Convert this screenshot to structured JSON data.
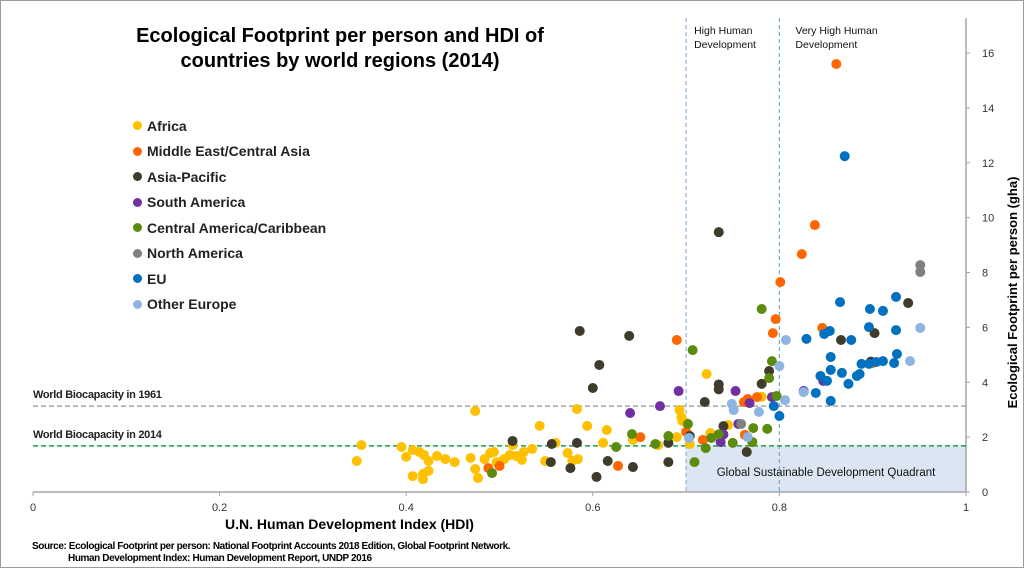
{
  "chart_data": {
    "type": "scatter",
    "title": "Ecological Footprint per person and HDI of countries by world regions (2014)",
    "xlabel": "U.N. Human Development Index (HDI)",
    "ylabel": "Ecological Footprint per person (gha)",
    "xlim": [
      0,
      1
    ],
    "ylim": [
      0,
      16
    ],
    "x_ticks": [
      "0",
      "0.2",
      "0.4",
      "0.6",
      "0.8",
      "1"
    ],
    "y_ticks": [
      "0",
      "2",
      "4",
      "6",
      "8",
      "10",
      "12",
      "14",
      "16"
    ],
    "grid": false,
    "legend_position": "top-left",
    "reference_lines": [
      {
        "label": "World Biocapacity in 1961",
        "y": 3.13,
        "color": "#a6a6a6"
      },
      {
        "label": "World Biocapacity in 2014",
        "y": 1.68,
        "color": "#1f9a4a"
      }
    ],
    "vertical_lines": [
      {
        "label": "High Human Development",
        "x": 0.7,
        "color": "#8fb4d9"
      },
      {
        "label": "Very High Human Development",
        "x": 0.8,
        "color": "#6cb0d0"
      }
    ],
    "quadrant": {
      "label": "Global Sustainable Development Quadrant",
      "x": [
        0.7,
        1
      ],
      "y": [
        0,
        1.68
      ],
      "color": "#dce6f2"
    },
    "series": [
      {
        "name": "Africa",
        "color": "#ffc000",
        "points": [
          [
            0.347,
            1.13
          ],
          [
            0.352,
            1.71
          ],
          [
            0.395,
            1.64
          ],
          [
            0.4,
            1.28
          ],
          [
            0.407,
            1.53
          ],
          [
            0.414,
            1.46
          ],
          [
            0.419,
            1.35
          ],
          [
            0.424,
            1.13
          ],
          [
            0.418,
            0.66
          ],
          [
            0.407,
            0.58
          ],
          [
            0.418,
            0.47
          ],
          [
            0.424,
            0.77
          ],
          [
            0.433,
            1.31
          ],
          [
            0.442,
            1.2
          ],
          [
            0.452,
            1.09
          ],
          [
            0.469,
            1.24
          ],
          [
            0.474,
            2.95
          ],
          [
            0.474,
            0.84
          ],
          [
            0.477,
            0.51
          ],
          [
            0.484,
            1.2
          ],
          [
            0.49,
            1.42
          ],
          [
            0.494,
            1.46
          ],
          [
            0.497,
            1.09
          ],
          [
            0.505,
            1.2
          ],
          [
            0.511,
            1.35
          ],
          [
            0.514,
            1.71
          ],
          [
            0.518,
            1.31
          ],
          [
            0.524,
            1.17
          ],
          [
            0.526,
            1.46
          ],
          [
            0.535,
            1.57
          ],
          [
            0.543,
            2.41
          ],
          [
            0.549,
            1.13
          ],
          [
            0.56,
            1.79
          ],
          [
            0.573,
            1.42
          ],
          [
            0.583,
            3.02
          ],
          [
            0.578,
            1.13
          ],
          [
            0.584,
            1.2
          ],
          [
            0.594,
            2.41
          ],
          [
            0.611,
            1.79
          ],
          [
            0.615,
            2.26
          ],
          [
            0.643,
            1.9
          ],
          [
            0.67,
            1.71
          ],
          [
            0.693,
            2.99
          ],
          [
            0.696,
            2.59
          ],
          [
            0.7,
            2.52
          ],
          [
            0.704,
            1.75
          ],
          [
            0.722,
            4.3
          ],
          [
            0.695,
            2.72
          ],
          [
            0.69,
            2.0
          ],
          [
            0.726,
            2.15
          ],
          [
            0.745,
            2.44
          ],
          [
            0.781,
            3.47
          ]
        ]
      },
      {
        "name": "Middle East/Central Asia",
        "color": "#ff6600",
        "points": [
          [
            0.861,
            15.6
          ],
          [
            0.838,
            9.73
          ],
          [
            0.824,
            8.67
          ],
          [
            0.801,
            7.65
          ],
          [
            0.796,
            6.3
          ],
          [
            0.793,
            5.79
          ],
          [
            0.846,
            5.98
          ],
          [
            0.69,
            5.54
          ],
          [
            0.762,
            3.28
          ],
          [
            0.766,
            3.39
          ],
          [
            0.776,
            3.46
          ],
          [
            0.488,
            0.87
          ],
          [
            0.5,
            0.95
          ],
          [
            0.627,
            0.95
          ],
          [
            0.651,
            2.0
          ],
          [
            0.7,
            2.19
          ],
          [
            0.763,
            2.08
          ],
          [
            0.771,
            1.82
          ],
          [
            0.718,
            1.9
          ],
          [
            0.9,
            4.7
          ]
        ]
      },
      {
        "name": "Asia-Pacific",
        "color": "#403c2c",
        "points": [
          [
            0.586,
            5.87
          ],
          [
            0.607,
            4.63
          ],
          [
            0.639,
            5.69
          ],
          [
            0.6,
            3.79
          ],
          [
            0.735,
            9.47
          ],
          [
            0.735,
            3.92
          ],
          [
            0.735,
            3.74
          ],
          [
            0.72,
            3.28
          ],
          [
            0.781,
            3.94
          ],
          [
            0.789,
            4.41
          ],
          [
            0.866,
            5.54
          ],
          [
            0.902,
            5.79
          ],
          [
            0.938,
            6.89
          ],
          [
            0.514,
            1.86
          ],
          [
            0.556,
            1.75
          ],
          [
            0.555,
            1.09
          ],
          [
            0.576,
            0.87
          ],
          [
            0.583,
            1.79
          ],
          [
            0.604,
            0.55
          ],
          [
            0.616,
            1.13
          ],
          [
            0.643,
            0.91
          ],
          [
            0.681,
            1.79
          ],
          [
            0.681,
            1.09
          ],
          [
            0.704,
            2.04
          ],
          [
            0.765,
            1.46
          ],
          [
            0.74,
            2.4
          ],
          [
            0.898,
            4.75
          ]
        ]
      },
      {
        "name": "South America",
        "color": "#7030a0",
        "points": [
          [
            0.64,
            2.88
          ],
          [
            0.672,
            3.13
          ],
          [
            0.692,
            3.68
          ],
          [
            0.753,
            3.68
          ],
          [
            0.768,
            3.24
          ],
          [
            0.756,
            2.48
          ],
          [
            0.847,
            4.05
          ],
          [
            0.826,
            3.68
          ],
          [
            0.792,
            3.46
          ],
          [
            0.737,
            1.82
          ],
          [
            0.74,
            2.1
          ]
        ]
      },
      {
        "name": "Central America/Caribbean",
        "color": "#5b8c0f",
        "points": [
          [
            0.707,
            5.17
          ],
          [
            0.781,
            6.67
          ],
          [
            0.792,
            4.77
          ],
          [
            0.789,
            4.15
          ],
          [
            0.797,
            3.5
          ],
          [
            0.702,
            2.48
          ],
          [
            0.727,
            1.97
          ],
          [
            0.75,
            1.79
          ],
          [
            0.772,
            2.33
          ],
          [
            0.787,
            2.3
          ],
          [
            0.771,
            1.82
          ],
          [
            0.721,
            1.6
          ],
          [
            0.709,
            1.09
          ],
          [
            0.681,
            2.04
          ],
          [
            0.642,
            2.11
          ],
          [
            0.625,
            1.64
          ],
          [
            0.492,
            0.69
          ],
          [
            0.667,
            1.75
          ],
          [
            0.735,
            2.1
          ]
        ]
      },
      {
        "name": "North America",
        "color": "#808080",
        "points": [
          [
            0.951,
            8.27
          ],
          [
            0.951,
            8.02
          ],
          [
            0.759,
            2.48
          ]
        ]
      },
      {
        "name": "EU",
        "color": "#0070c0",
        "points": [
          [
            0.87,
            12.24
          ],
          [
            0.865,
            6.92
          ],
          [
            0.897,
            6.67
          ],
          [
            0.911,
            6.6
          ],
          [
            0.925,
            7.11
          ],
          [
            0.896,
            6.01
          ],
          [
            0.925,
            5.9
          ],
          [
            0.854,
            5.87
          ],
          [
            0.829,
            5.58
          ],
          [
            0.848,
            5.76
          ],
          [
            0.877,
            5.54
          ],
          [
            0.855,
            4.92
          ],
          [
            0.855,
            4.45
          ],
          [
            0.867,
            4.34
          ],
          [
            0.886,
            4.3
          ],
          [
            0.888,
            4.67
          ],
          [
            0.896,
            4.67
          ],
          [
            0.904,
            4.74
          ],
          [
            0.911,
            4.77
          ],
          [
            0.926,
            5.03
          ],
          [
            0.923,
            4.7
          ],
          [
            0.883,
            4.23
          ],
          [
            0.844,
            4.23
          ],
          [
            0.851,
            4.05
          ],
          [
            0.839,
            3.61
          ],
          [
            0.855,
            3.32
          ],
          [
            0.794,
            3.13
          ],
          [
            0.8,
            2.77
          ],
          [
            0.874,
            3.94
          ]
        ]
      },
      {
        "name": "Other Europe",
        "color": "#8db4e2",
        "points": [
          [
            0.807,
            5.54
          ],
          [
            0.951,
            5.98
          ],
          [
            0.94,
            4.77
          ],
          [
            0.8,
            4.59
          ],
          [
            0.806,
            3.35
          ],
          [
            0.826,
            3.64
          ],
          [
            0.749,
            3.21
          ],
          [
            0.751,
            2.99
          ],
          [
            0.778,
            2.92
          ],
          [
            0.766,
            2.0
          ],
          [
            0.703,
            1.97
          ]
        ]
      }
    ]
  },
  "title_lines": [
    "Ecological Footprint per person and HDI of",
    "countries by world regions (2014)"
  ],
  "annotations": {
    "high_hd": [
      "High Human",
      "Development"
    ],
    "very_high_hd": [
      "Very High Human",
      "Development"
    ]
  },
  "source": [
    "Source: Ecological Footprint per person: National Footprint Accounts 2018 Edition, Global Footprint Network.",
    "Human Development Index: Human Development Report, UNDP 2016"
  ]
}
